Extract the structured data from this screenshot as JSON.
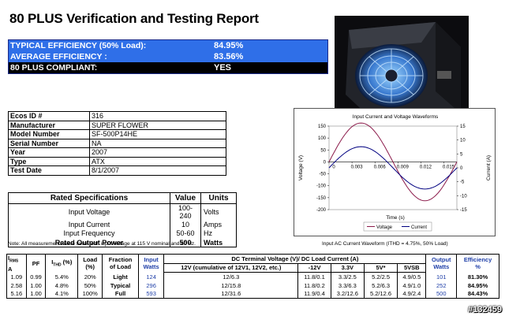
{
  "title": "80 PLUS Verification and Testing Report",
  "summary": {
    "typical_label": "TYPICAL EFFICIENCY (50% Load):",
    "typical_value": "84.95%",
    "average_label": "AVERAGE EFFICIENCY :",
    "average_value": "83.56%",
    "compliant_label": "80 PLUS COMPLIANT:",
    "compliant_value": "YES",
    "colors": {
      "blue_band": "#2f6fe8",
      "black_band": "#000000"
    }
  },
  "info": [
    {
      "k": "Ecos ID #",
      "v": "316"
    },
    {
      "k": "Manufacturer",
      "v": "SUPER FLOWER"
    },
    {
      "k": "Model Number",
      "v": "SF-500P14HE"
    },
    {
      "k": "Serial Number",
      "v": "NA"
    },
    {
      "k": "Year",
      "v": "2007"
    },
    {
      "k": "Type",
      "v": "ATX"
    },
    {
      "k": "Test Date",
      "v": "8/1/2007"
    }
  ],
  "specs": {
    "headers": [
      "Rated Specifications",
      "Value",
      "Units"
    ],
    "rows": [
      {
        "name": "Input Voltage",
        "value": "100-240",
        "unit": "Volts"
      },
      {
        "name": "Input Current",
        "value": "10",
        "unit": "Amps"
      },
      {
        "name": "Input Frequency",
        "value": "50-60",
        "unit": "Hz"
      },
      {
        "name": "Rated Output Power",
        "value": "500",
        "unit": "Watts"
      }
    ]
  },
  "notes": {
    "left": "Note: All measurements were taken with input voltage at 115 V nominal and 60 Hz.",
    "right": "Input AC Current Waveform (ITHD = 4.75%, 50% Load)"
  },
  "chart_data": {
    "type": "line",
    "title": "Input Current and Voltage Waveforms",
    "xlabel": "Time (s)",
    "ylabel": "Voltage (V)",
    "y2label": "Current (A)",
    "xlim": [
      0,
      0.0167
    ],
    "ylim": [
      -200,
      150
    ],
    "y2lim": [
      -15,
      15
    ],
    "xticks": [
      "0",
      "0.003",
      "0.006",
      "0.009",
      "0.012",
      "0.015"
    ],
    "xtick_values": [
      0,
      0.003,
      0.006,
      0.009,
      0.012,
      0.015
    ],
    "yticks": [
      "150",
      "100",
      "50",
      "0",
      "-50",
      "-100",
      "-150",
      "-200"
    ],
    "y2ticks": [
      "15",
      "10",
      "5",
      "0",
      "-5",
      "-10",
      "-15"
    ],
    "legend_position": "bottom",
    "series": [
      {
        "name": "Voltage",
        "axis": "left",
        "color": "#8b1a4a",
        "amplitude": 163,
        "period": 0.0167,
        "phase": 0
      },
      {
        "name": "Current",
        "axis": "right",
        "color": "#000080",
        "amplitude": 7.6,
        "period": 0.0167,
        "phase": 0
      }
    ]
  },
  "dc_table": {
    "col_irms": "I",
    "col_irms_sub": "RMS",
    "col_irms_unit": "A",
    "col_pf": "PF",
    "col_ithd": "I",
    "col_ithd_sub": "THD",
    "col_ithd_unit": "(%)",
    "col_load": "Load",
    "col_load_unit": "(%)",
    "col_fraction": "Fraction",
    "col_fraction2": "of Load",
    "col_input": "Input",
    "col_input2": "Watts",
    "col_dc_title": "DC Terminal Voltage (V)/ DC Load Current (A)",
    "col_12v": "12V (cumulative of 12V1, 12V2, etc.)",
    "col_m12v": "-12V",
    "col_33v": "3.3V",
    "col_5v": "5V*",
    "col_5vsb": "5VSB",
    "col_output": "Output",
    "col_output2": "Watts",
    "col_eff": "Efficiency",
    "col_eff2": "%",
    "rows": [
      {
        "irms": "1.09",
        "pf": "0.99",
        "ithd": "5.4%",
        "load": "20%",
        "fraction": "Light",
        "input": "124",
        "v12": "12/6.3",
        "vm12": "11.8/0.1",
        "v33": "3.3/2.5",
        "v5": "5.2/2.5",
        "v5sb": "4.9/0.5",
        "output": "101",
        "eff": "81.30%"
      },
      {
        "irms": "2.58",
        "pf": "1.00",
        "ithd": "4.8%",
        "load": "50%",
        "fraction": "Typical",
        "input": "296",
        "v12": "12/15.8",
        "vm12": "11.8/0.2",
        "v33": "3.3/6.3",
        "v5": "5.2/6.3",
        "v5sb": "4.9/1.0",
        "output": "252",
        "eff": "84.95%"
      },
      {
        "irms": "5.16",
        "pf": "1.00",
        "ithd": "4.1%",
        "load": "100%",
        "fraction": "Full",
        "input": "593",
        "v12": "12/31.6",
        "vm12": "11.9/0.4",
        "v33": "3.2/12.6",
        "v5": "5.2/12.6",
        "v5sb": "4.9/2.4",
        "output": "500",
        "eff": "84.43%"
      }
    ]
  },
  "watermark": "#132459"
}
